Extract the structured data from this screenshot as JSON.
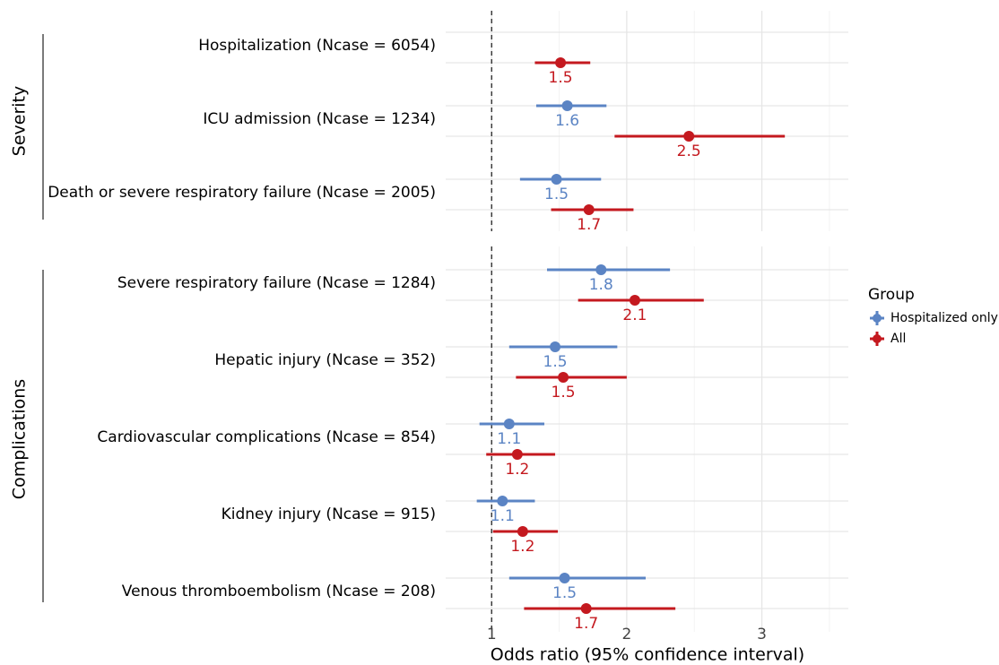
{
  "chart_data": {
    "type": "forest",
    "xlabel": "Odds ratio (95% confidence interval)",
    "xlim": [
      0.66,
      3.64
    ],
    "xticks": [
      1,
      2,
      3
    ],
    "xminorticks": [
      1.5,
      2.5,
      3.5
    ],
    "grid": true,
    "ref_line": 1,
    "legend_title": "Group",
    "legend": "right",
    "panels": [
      {
        "name": "Severity",
        "categories": [
          "Hospitalization (Ncase = 6054)",
          "ICU admission (Ncase = 1234)",
          "Death or severe respiratory failure (Ncase = 2005)"
        ],
        "series": [
          {
            "name": "Hospitalized only",
            "color": "#5b84c4",
            "values": [
              null,
              1.56,
              1.48
            ],
            "lower": [
              null,
              1.33,
              1.21
            ],
            "upper": [
              null,
              1.85,
              1.81
            ],
            "value_labels": [
              null,
              "1.6",
              "1.5"
            ]
          },
          {
            "name": "All",
            "color": "#c4191f",
            "values": [
              1.51,
              2.46,
              1.72
            ],
            "lower": [
              1.32,
              1.91,
              1.44
            ],
            "upper": [
              1.73,
              3.17,
              2.05
            ],
            "value_labels": [
              "1.5",
              "2.5",
              "1.7"
            ]
          }
        ]
      },
      {
        "name": "Complications",
        "categories": [
          "Severe respiratory failure (Ncase = 1284)",
          "Hepatic injury (Ncase = 352)",
          "Cardiovascular complications (Ncase = 854)",
          "Kidney injury (Ncase = 915)",
          "Venous thromboembolism (Ncase = 208)"
        ],
        "series": [
          {
            "name": "Hospitalized only",
            "color": "#5b84c4",
            "values": [
              1.81,
              1.47,
              1.13,
              1.08,
              1.54
            ],
            "lower": [
              1.41,
              1.13,
              0.91,
              0.89,
              1.13
            ],
            "upper": [
              2.32,
              1.93,
              1.39,
              1.32,
              2.14
            ],
            "value_labels": [
              "1.8",
              "1.5",
              "1.1",
              "1.1",
              "1.5"
            ]
          },
          {
            "name": "All",
            "color": "#c4191f",
            "values": [
              2.06,
              1.53,
              1.19,
              1.23,
              1.7
            ],
            "lower": [
              1.64,
              1.18,
              0.96,
              1.01,
              1.24
            ],
            "upper": [
              2.57,
              2.0,
              1.47,
              1.49,
              2.36
            ],
            "value_labels": [
              "2.1",
              "1.5",
              "1.2",
              "1.2",
              "1.7"
            ]
          }
        ]
      }
    ]
  }
}
